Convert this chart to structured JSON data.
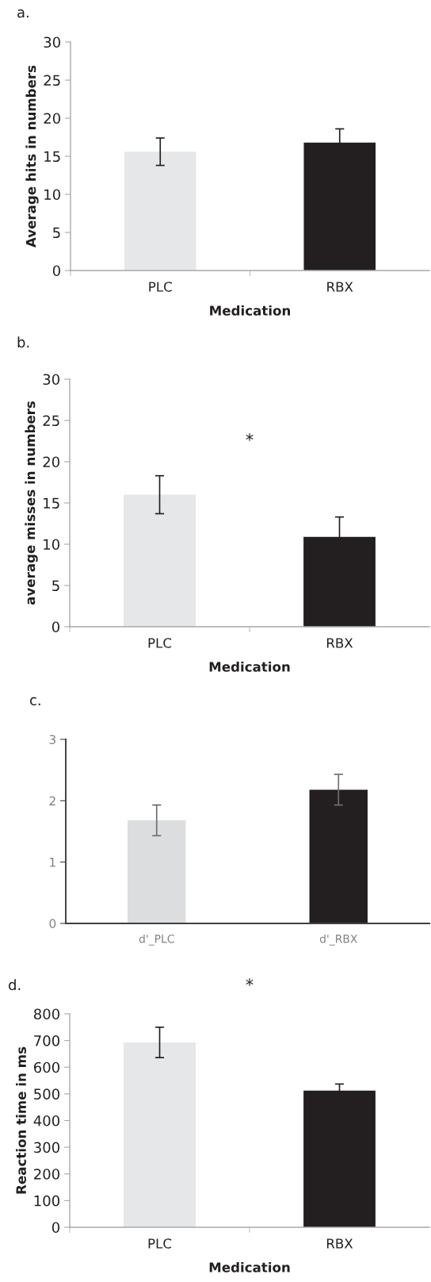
{
  "chart_data": [
    {
      "type": "bar",
      "title": "a.",
      "xlabel": "Medication",
      "ylabel": "Average hits in numbers",
      "categories": [
        "PLC",
        "RBX"
      ],
      "values": [
        15.6,
        16.8
      ],
      "errors": [
        1.8,
        1.8
      ],
      "colors": [
        "#e6e7e8",
        "#231f20"
      ],
      "ylim": [
        0,
        30
      ],
      "yticks": [
        0,
        5,
        10,
        15,
        20,
        25,
        30
      ],
      "grid": false,
      "legend": false
    },
    {
      "type": "bar",
      "title": "b.",
      "xlabel": "Medication",
      "ylabel": "average misses in numbers",
      "categories": [
        "PLC",
        "RBX"
      ],
      "values": [
        16.0,
        10.9
      ],
      "errors": [
        2.3,
        2.4
      ],
      "colors": [
        "#e6e7e8",
        "#231f20"
      ],
      "ylim": [
        0,
        30
      ],
      "yticks": [
        0,
        5,
        10,
        15,
        20,
        25,
        30
      ],
      "annotations": [
        "*"
      ],
      "grid": false,
      "legend": false
    },
    {
      "type": "bar",
      "title": "c.",
      "categories": [
        "d'_PLC",
        "d'_RBX"
      ],
      "values": [
        1.68,
        2.18
      ],
      "errors": [
        0.25,
        0.25
      ],
      "colors": [
        "#dcdddf",
        "#231f20"
      ],
      "ylim": [
        0,
        3
      ],
      "yticks": [
        0,
        1,
        2,
        3
      ],
      "grid": false,
      "legend": false
    },
    {
      "type": "bar",
      "title": "d.",
      "xlabel": "Medication",
      "ylabel": "Reaction time in ms",
      "categories": [
        "PLC",
        "RBX"
      ],
      "values": [
        693,
        512
      ],
      "errors": [
        57,
        25
      ],
      "colors": [
        "#e6e7e8",
        "#231f20"
      ],
      "ylim": [
        0,
        800
      ],
      "yticks": [
        0,
        100,
        200,
        300,
        400,
        500,
        600,
        700,
        800
      ],
      "annotations": [
        "*"
      ],
      "grid": false,
      "legend": false
    }
  ]
}
